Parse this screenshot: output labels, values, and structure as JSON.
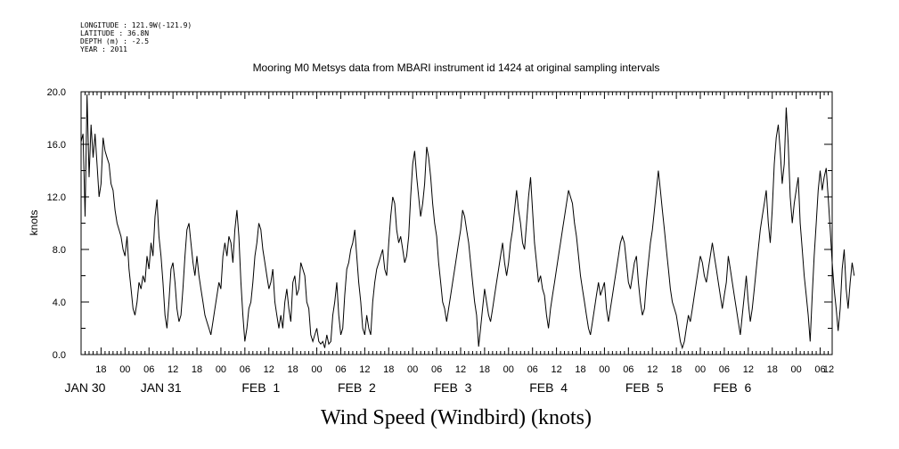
{
  "header": {
    "longitude": "LONGITUDE : 121.9W(-121.9)",
    "latitude": "LATITUDE : 36.8N",
    "depth": "DEPTH (m) : -2.5",
    "year": "YEAR : 2011"
  },
  "chart_data": {
    "type": "line",
    "title": "Mooring M0 Metsys data from MBARI instrument id 1424 at original sampling intervals",
    "xlabel": "Wind Speed (Windbird) (knots)",
    "ylabel": "knots",
    "ylim": [
      0,
      20
    ],
    "yticks": [
      "0.0",
      "4.0",
      "8.0",
      "12.0",
      "16.0",
      "20.0"
    ],
    "x_range_hours": [
      13,
      201
    ],
    "x_hour_ticks": [
      {
        "h": 18,
        "label": "18"
      },
      {
        "h": 24,
        "label": "00"
      },
      {
        "h": 30,
        "label": "06"
      },
      {
        "h": 36,
        "label": "12"
      },
      {
        "h": 42,
        "label": "18"
      },
      {
        "h": 48,
        "label": "00"
      },
      {
        "h": 54,
        "label": "06"
      },
      {
        "h": 60,
        "label": "12"
      },
      {
        "h": 66,
        "label": "18"
      },
      {
        "h": 72,
        "label": "00"
      },
      {
        "h": 78,
        "label": "06"
      },
      {
        "h": 84,
        "label": "12"
      },
      {
        "h": 90,
        "label": "18"
      },
      {
        "h": 96,
        "label": "00"
      },
      {
        "h": 102,
        "label": "06"
      },
      {
        "h": 108,
        "label": "12"
      },
      {
        "h": 114,
        "label": "18"
      },
      {
        "h": 120,
        "label": "00"
      },
      {
        "h": 126,
        "label": "06"
      },
      {
        "h": 132,
        "label": "12"
      },
      {
        "h": 138,
        "label": "18"
      },
      {
        "h": 144,
        "label": "00"
      },
      {
        "h": 150,
        "label": "06"
      },
      {
        "h": 156,
        "label": "12"
      },
      {
        "h": 162,
        "label": "18"
      },
      {
        "h": 168,
        "label": "00"
      },
      {
        "h": 174,
        "label": "06"
      },
      {
        "h": 180,
        "label": "12"
      },
      {
        "h": 186,
        "label": "18"
      },
      {
        "h": 192,
        "label": "00"
      },
      {
        "h": 198,
        "label": "06"
      },
      {
        "h": 204,
        "label": "12"
      }
    ],
    "x_date_labels": [
      {
        "h": 14,
        "label": "JAN 30"
      },
      {
        "h": 33,
        "label": "JAN 31"
      },
      {
        "h": 58,
        "label": "FEB  1"
      },
      {
        "h": 82,
        "label": "FEB  2"
      },
      {
        "h": 106,
        "label": "FEB  3"
      },
      {
        "h": 130,
        "label": "FEB  4"
      },
      {
        "h": 154,
        "label": "FEB  5"
      },
      {
        "h": 176,
        "label": "FEB  6"
      }
    ],
    "grid": false,
    "series": [
      {
        "x_start_hour": 13,
        "x_step_hours": 0.5,
        "values": [
          16.2,
          16.8,
          10.5,
          19.8,
          13.5,
          17.5,
          15.0,
          16.8,
          14.5,
          12.0,
          13.0,
          16.5,
          15.5,
          15.0,
          14.5,
          13.0,
          12.5,
          11.0,
          10.0,
          9.5,
          9.0,
          8.0,
          7.5,
          9.0,
          6.5,
          5.0,
          3.5,
          3.0,
          4.0,
          5.5,
          5.0,
          6.0,
          5.5,
          7.5,
          6.5,
          8.5,
          7.5,
          10.5,
          11.8,
          9.0,
          7.5,
          5.5,
          3.0,
          2.0,
          4.0,
          6.5,
          7.0,
          5.5,
          3.5,
          2.5,
          3.0,
          5.0,
          7.5,
          9.5,
          10.0,
          8.5,
          7.0,
          6.0,
          7.5,
          6.0,
          5.0,
          4.0,
          3.0,
          2.5,
          2.0,
          1.5,
          2.5,
          3.5,
          4.5,
          5.5,
          5.0,
          7.5,
          8.5,
          7.5,
          9.0,
          8.5,
          7.0,
          9.5,
          11.0,
          9.0,
          5.5,
          3.0,
          1.0,
          2.0,
          3.5,
          4.0,
          5.5,
          7.5,
          8.5,
          10.0,
          9.5,
          8.0,
          7.0,
          6.0,
          5.0,
          5.5,
          6.5,
          4.0,
          3.0,
          2.0,
          3.0,
          2.0,
          4.0,
          5.0,
          3.5,
          2.5,
          5.5,
          6.0,
          4.5,
          5.0,
          7.0,
          6.5,
          6.0,
          4.0,
          3.5,
          1.5,
          1.0,
          1.5,
          2.0,
          1.0,
          0.8,
          1.0,
          0.5,
          1.5,
          0.8,
          1.0,
          3.0,
          4.0,
          5.5,
          3.0,
          1.5,
          2.0,
          4.5,
          6.5,
          7.0,
          8.0,
          8.5,
          9.5,
          7.5,
          5.5,
          4.0,
          2.0,
          1.5,
          3.0,
          2.0,
          1.5,
          4.0,
          5.5,
          6.5,
          7.0,
          7.5,
          8.0,
          6.5,
          6.0,
          8.5,
          10.5,
          12.0,
          11.5,
          9.5,
          8.5,
          9.0,
          8.0,
          7.0,
          7.5,
          9.0,
          12.0,
          14.5,
          15.5,
          13.5,
          12.0,
          10.5,
          11.5,
          13.0,
          15.8,
          15.0,
          13.5,
          11.5,
          10.0,
          9.0,
          7.0,
          5.5,
          4.0,
          3.5,
          2.5,
          3.5,
          4.5,
          5.5,
          6.5,
          7.5,
          8.5,
          9.5,
          11.0,
          10.5,
          9.5,
          8.5,
          7.0,
          5.5,
          4.0,
          3.0,
          0.6,
          2.0,
          3.5,
          5.0,
          4.0,
          3.0,
          2.5,
          3.5,
          4.5,
          5.5,
          6.5,
          7.5,
          8.5,
          7.0,
          6.0,
          7.0,
          8.5,
          9.5,
          11.0,
          12.5,
          11.0,
          10.0,
          8.5,
          8.0,
          10.0,
          12.0,
          13.5,
          11.0,
          8.5,
          7.0,
          5.5,
          6.0,
          5.0,
          4.5,
          3.0,
          2.0,
          3.5,
          4.5,
          5.5,
          6.5,
          7.5,
          8.5,
          9.5,
          10.5,
          11.5,
          12.5,
          12.0,
          11.5,
          10.0,
          9.0,
          7.5,
          6.0,
          5.0,
          4.0,
          3.0,
          2.0,
          1.5,
          2.5,
          3.5,
          4.5,
          5.5,
          4.5,
          5.0,
          5.5,
          3.5,
          2.5,
          3.5,
          4.5,
          5.5,
          6.5,
          7.5,
          8.5,
          9.0,
          8.5,
          7.0,
          5.5,
          5.0,
          6.0,
          7.0,
          7.5,
          5.5,
          4.0,
          3.0,
          3.5,
          5.5,
          7.0,
          8.5,
          9.5,
          11.0,
          12.5,
          14.0,
          12.5,
          11.0,
          9.5,
          8.0,
          6.5,
          5.0,
          4.0,
          3.5,
          3.0,
          2.0,
          1.0,
          0.5,
          1.0,
          2.0,
          3.0,
          2.5,
          3.5,
          4.5,
          5.5,
          6.5,
          7.5,
          7.0,
          6.0,
          5.5,
          6.5,
          7.5,
          8.5,
          7.5,
          6.5,
          5.5,
          4.5,
          3.5,
          4.5,
          5.5,
          7.5,
          6.5,
          5.5,
          4.5,
          3.5,
          2.5,
          1.5,
          3.0,
          4.5,
          6.0,
          4.0,
          2.5,
          3.5,
          5.0,
          6.5,
          8.0,
          9.5,
          10.5,
          11.5,
          12.5,
          10.0,
          8.5,
          11.0,
          14.5,
          16.5,
          17.5,
          15.5,
          13.0,
          14.5,
          18.8,
          16.0,
          12.0,
          10.0,
          11.5,
          12.5,
          13.5,
          10.0,
          8.0,
          6.0,
          4.5,
          3.0,
          1.0,
          4.5,
          7.5,
          10.0,
          12.5,
          14.0,
          12.5,
          13.5,
          14.2,
          12.0,
          9.5,
          7.0,
          5.0,
          3.5,
          1.8,
          3.5,
          6.5,
          8.0,
          5.0,
          3.5,
          5.5,
          7.0,
          6.0
        ]
      }
    ]
  }
}
